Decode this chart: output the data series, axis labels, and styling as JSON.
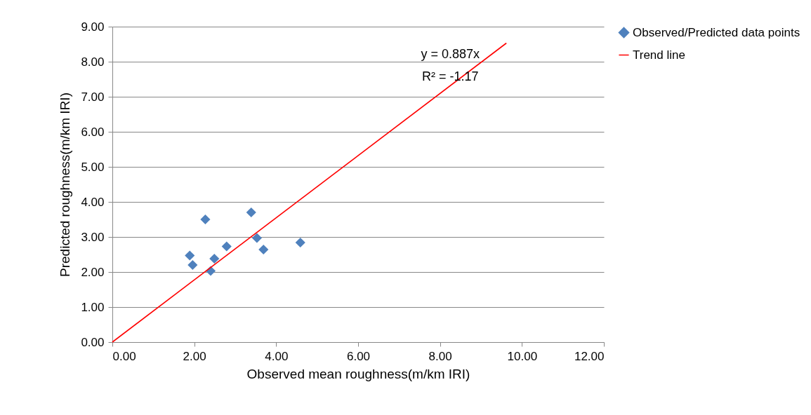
{
  "chart_data": {
    "type": "scatter",
    "xlabel": "Observed mean roughness(m/km IRI)",
    "ylabel": "Predicted roughness(m/km IRI)",
    "xlim": [
      0,
      12
    ],
    "ylim": [
      0,
      9
    ],
    "xticks": [
      {
        "value": 0,
        "label": "0.00"
      },
      {
        "value": 2,
        "label": "2.00"
      },
      {
        "value": 4,
        "label": "4.00"
      },
      {
        "value": 6,
        "label": "6.00"
      },
      {
        "value": 8,
        "label": "8.00"
      },
      {
        "value": 10,
        "label": "10.00"
      },
      {
        "value": 12,
        "label": "12.00"
      }
    ],
    "yticks": [
      {
        "value": 0,
        "label": "0.00"
      },
      {
        "value": 1,
        "label": "1.00"
      },
      {
        "value": 2,
        "label": "2.00"
      },
      {
        "value": 3,
        "label": "3.00"
      },
      {
        "value": 4,
        "label": "4.00"
      },
      {
        "value": 5,
        "label": "5.00"
      },
      {
        "value": 6,
        "label": "6.00"
      },
      {
        "value": 7,
        "label": "7.00"
      },
      {
        "value": 8,
        "label": "8.00"
      },
      {
        "value": 9,
        "label": "9.00"
      }
    ],
    "series": [
      {
        "name": "Observed/Predicted data points",
        "color": "#4f81bd",
        "marker": "diamond",
        "x": [
          1.89,
          1.96,
          2.27,
          2.4,
          2.49,
          2.79,
          3.39,
          3.53,
          3.69,
          4.59
        ],
        "values": [
          2.47,
          2.2,
          3.5,
          2.03,
          2.38,
          2.73,
          3.7,
          2.97,
          2.64,
          2.84
        ]
      },
      {
        "name": "Trend line",
        "type": "line",
        "color": "#ff0000",
        "marker": "none",
        "line_style": "solid",
        "x": [
          0,
          9.62
        ],
        "values": [
          0,
          8.53
        ]
      }
    ],
    "annotations": [
      "y = 0.887x",
      "R² = -1.17"
    ],
    "grid": "y",
    "legend": "top right"
  }
}
